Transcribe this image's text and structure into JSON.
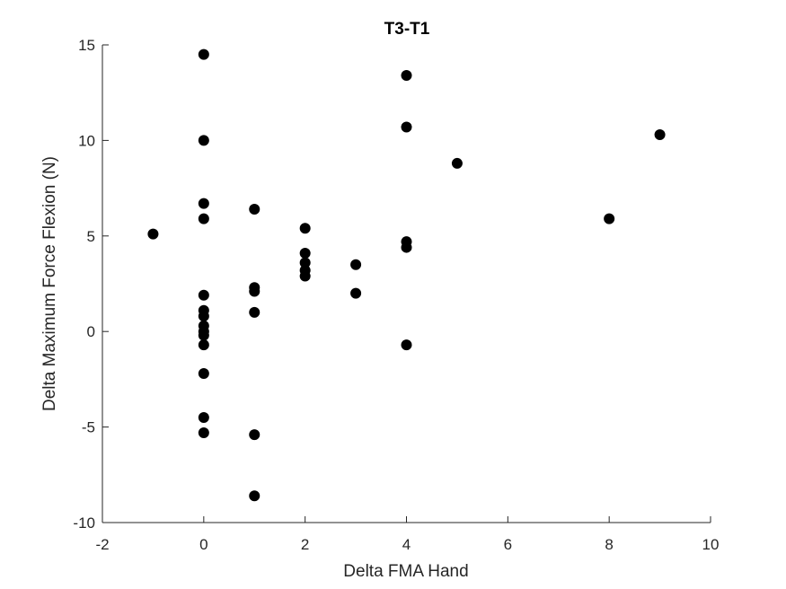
{
  "chart_data": {
    "type": "scatter",
    "title": "T3-T1",
    "xlabel": "Delta FMA Hand",
    "ylabel": "Delta Maximum Force Flexion (N)",
    "xlim": [
      -2,
      10
    ],
    "ylim": [
      -10,
      15
    ],
    "xticks": [
      -2,
      0,
      2,
      4,
      6,
      8,
      10
    ],
    "yticks": [
      -10,
      -5,
      0,
      5,
      10,
      15
    ],
    "grid": false,
    "marker_color": "#000000",
    "points": [
      {
        "x": -1,
        "y": 5.1
      },
      {
        "x": 0,
        "y": 14.5
      },
      {
        "x": 0,
        "y": 10.0
      },
      {
        "x": 0,
        "y": 6.7
      },
      {
        "x": 0,
        "y": 5.9
      },
      {
        "x": 0,
        "y": 1.9
      },
      {
        "x": 0,
        "y": 1.1
      },
      {
        "x": 0,
        "y": 0.8
      },
      {
        "x": 0,
        "y": 0.3
      },
      {
        "x": 0,
        "y": 0.0
      },
      {
        "x": 0,
        "y": -0.2
      },
      {
        "x": 0,
        "y": -0.7
      },
      {
        "x": 0,
        "y": -2.2
      },
      {
        "x": 0,
        "y": -4.5
      },
      {
        "x": 0,
        "y": -5.3
      },
      {
        "x": 1,
        "y": 6.4
      },
      {
        "x": 1,
        "y": 2.3
      },
      {
        "x": 1,
        "y": 2.1
      },
      {
        "x": 1,
        "y": 1.0
      },
      {
        "x": 1,
        "y": -5.4
      },
      {
        "x": 1,
        "y": -8.6
      },
      {
        "x": 2,
        "y": 5.4
      },
      {
        "x": 2,
        "y": 4.1
      },
      {
        "x": 2,
        "y": 3.6
      },
      {
        "x": 2,
        "y": 3.2
      },
      {
        "x": 2,
        "y": 2.9
      },
      {
        "x": 3,
        "y": 3.5
      },
      {
        "x": 3,
        "y": 2.0
      },
      {
        "x": 4,
        "y": 13.4
      },
      {
        "x": 4,
        "y": 10.7
      },
      {
        "x": 4,
        "y": 4.7
      },
      {
        "x": 4,
        "y": 4.4
      },
      {
        "x": 4,
        "y": -0.7
      },
      {
        "x": 5,
        "y": 8.8
      },
      {
        "x": 8,
        "y": 5.9
      },
      {
        "x": 9,
        "y": 10.3
      }
    ]
  }
}
